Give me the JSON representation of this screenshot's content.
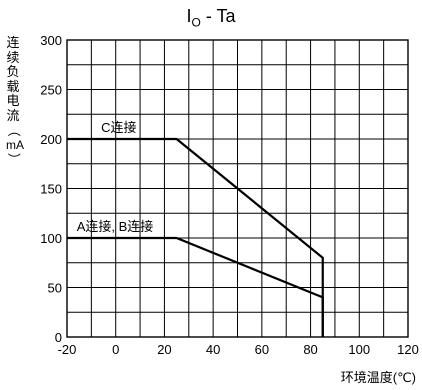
{
  "chart_data": {
    "type": "line",
    "title": "I_O - Ta",
    "title_main": "I",
    "title_sub": "O",
    "title_rest": " - Ta",
    "xlabel": "环境温度(℃)",
    "ylabel_chars": [
      "连",
      "续",
      "负",
      "载",
      "电",
      "流",
      "（",
      "mA",
      "）"
    ],
    "xlim": [
      -20,
      120
    ],
    "ylim": [
      0,
      300
    ],
    "x_major_ticks": [
      -20,
      0,
      20,
      40,
      60,
      80,
      100,
      120
    ],
    "y_major_ticks": [
      0,
      50,
      100,
      150,
      200,
      250,
      300
    ],
    "grid": true,
    "series": [
      {
        "name": "C连接",
        "x": [
          -20,
          25,
          85,
          85
        ],
        "y": [
          200,
          200,
          80,
          0
        ]
      },
      {
        "name": "A连接, B连接",
        "x": [
          -20,
          25,
          85,
          85
        ],
        "y": [
          100,
          100,
          40,
          0
        ]
      }
    ],
    "annotations": [
      {
        "text": "C连接",
        "x": -6,
        "y": 207
      },
      {
        "text": "A连接, B连接",
        "x": -16,
        "y": 107
      }
    ],
    "colors": {
      "line": "#000000",
      "grid": "#000000",
      "background": "#ffffff"
    }
  }
}
